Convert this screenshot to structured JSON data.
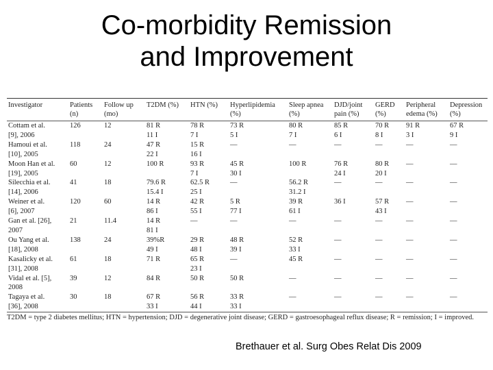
{
  "title_line1": "Co-morbidity Remission",
  "title_line2": "and Improvement",
  "table": {
    "headers": [
      {
        "line1": "Investigator",
        "line2": ""
      },
      {
        "line1": "Patients",
        "line2": "(n)"
      },
      {
        "line1": "Follow up",
        "line2": "(mo)"
      },
      {
        "line1": "T2DM (%)",
        "line2": ""
      },
      {
        "line1": "HTN (%)",
        "line2": ""
      },
      {
        "line1": "Hyperlipidemia",
        "line2": "(%)"
      },
      {
        "line1": "Sleep apnea",
        "line2": "(%)"
      },
      {
        "line1": "DJD/joint",
        "line2": "pain (%)"
      },
      {
        "line1": "GERD",
        "line2": "(%)"
      },
      {
        "line1": "Peripheral",
        "line2": "edema (%)"
      },
      {
        "line1": "Depression",
        "line2": "(%)"
      }
    ],
    "rows": [
      {
        "cells": [
          "Cottam et al.",
          "126",
          "12",
          "81 R",
          "78 R",
          "73 R",
          "80 R",
          "85 R",
          "70 R",
          "91 R",
          "67 R"
        ]
      },
      {
        "cells": [
          "[9], 2006",
          "",
          "",
          "11 I",
          "7 I",
          "5 I",
          "7 I",
          "6 I",
          "8 I",
          "3 I",
          "9 I"
        ]
      },
      {
        "cells": [
          "Hamoui et al.",
          "118",
          "24",
          "47 R",
          "15 R",
          "—",
          "—",
          "—",
          "—",
          "—",
          "—"
        ]
      },
      {
        "cells": [
          "[10], 2005",
          "",
          "",
          "22 I",
          "16 I",
          "",
          "",
          "",
          "",
          "",
          ""
        ]
      },
      {
        "cells": [
          "Moon Han et al.",
          "60",
          "12",
          "100 R",
          "93 R",
          "45 R",
          "100 R",
          "76 R",
          "80 R",
          "—",
          "—"
        ]
      },
      {
        "cells": [
          "[19], 2005",
          "",
          "",
          "",
          "7 I",
          "30 I",
          "",
          "24 I",
          "20 I",
          "",
          ""
        ]
      },
      {
        "cells": [
          "Silecchia et al.",
          "41",
          "18",
          "79.6 R",
          "62.5 R",
          "—",
          "56.2 R",
          "—",
          "—",
          "—",
          "—"
        ]
      },
      {
        "cells": [
          "[14], 2006",
          "",
          "",
          "15.4 I",
          "25 I",
          "",
          "31.2 I",
          "",
          "",
          "",
          ""
        ]
      },
      {
        "cells": [
          "Weiner et al.",
          "120",
          "60",
          "14 R",
          "42 R",
          "5 R",
          "39 R",
          "36 I",
          "57 R",
          "—",
          "—"
        ]
      },
      {
        "cells": [
          "[6], 2007",
          "",
          "",
          "86 I",
          "55 I",
          "77 I",
          "61 I",
          "",
          "43 I",
          "",
          ""
        ]
      },
      {
        "cells": [
          "Gan et al. [26],",
          "21",
          "11.4",
          "14 R",
          "—",
          "—",
          "—",
          "—",
          "—",
          "—",
          "—"
        ]
      },
      {
        "cells": [
          "2007",
          "",
          "",
          "81 I",
          "",
          "",
          "",
          "",
          "",
          "",
          ""
        ]
      },
      {
        "cells": [
          "Ou Yang et al.",
          "138",
          "24",
          "39%R",
          "29 R",
          "48 R",
          "52 R",
          "—",
          "—",
          "—",
          "—"
        ]
      },
      {
        "cells": [
          "[18], 2008",
          "",
          "",
          "49 I",
          "48 I",
          "39 I",
          "33 I",
          "",
          "",
          "",
          ""
        ]
      },
      {
        "cells": [
          "Kasalicky et al.",
          "61",
          "18",
          "71 R",
          "65 R",
          "—",
          "45 R",
          "—",
          "—",
          "—",
          "—"
        ]
      },
      {
        "cells": [
          "[31], 2008",
          "",
          "",
          "",
          "23 I",
          "",
          "",
          "",
          "",
          "",
          ""
        ]
      },
      {
        "cells": [
          "Vidal et al. [5],",
          "39",
          "12",
          "84 R",
          "50 R",
          "50 R",
          "—",
          "—",
          "—",
          "—",
          "—"
        ]
      },
      {
        "cells": [
          "2008",
          "",
          "",
          "",
          "",
          "",
          "",
          "",
          "",
          "",
          ""
        ]
      },
      {
        "cells": [
          "Tagaya et al.",
          "30",
          "18",
          "67 R",
          "56 R",
          "33 R",
          "—",
          "—",
          "—",
          "—",
          "—"
        ]
      },
      {
        "cells": [
          "[36], 2008",
          "",
          "",
          "33 I",
          "44 I",
          "33 I",
          "",
          "",
          "",
          "",
          ""
        ]
      }
    ],
    "footnote": "T2DM = type 2 diabetes mellitus; HTN = hypertension; DJD = degenerative joint disease; GERD = gastroesophageal reflux disease; R = remission; I = improved."
  },
  "citation": "Brethauer et al. Surg Obes Relat Dis 2009"
}
